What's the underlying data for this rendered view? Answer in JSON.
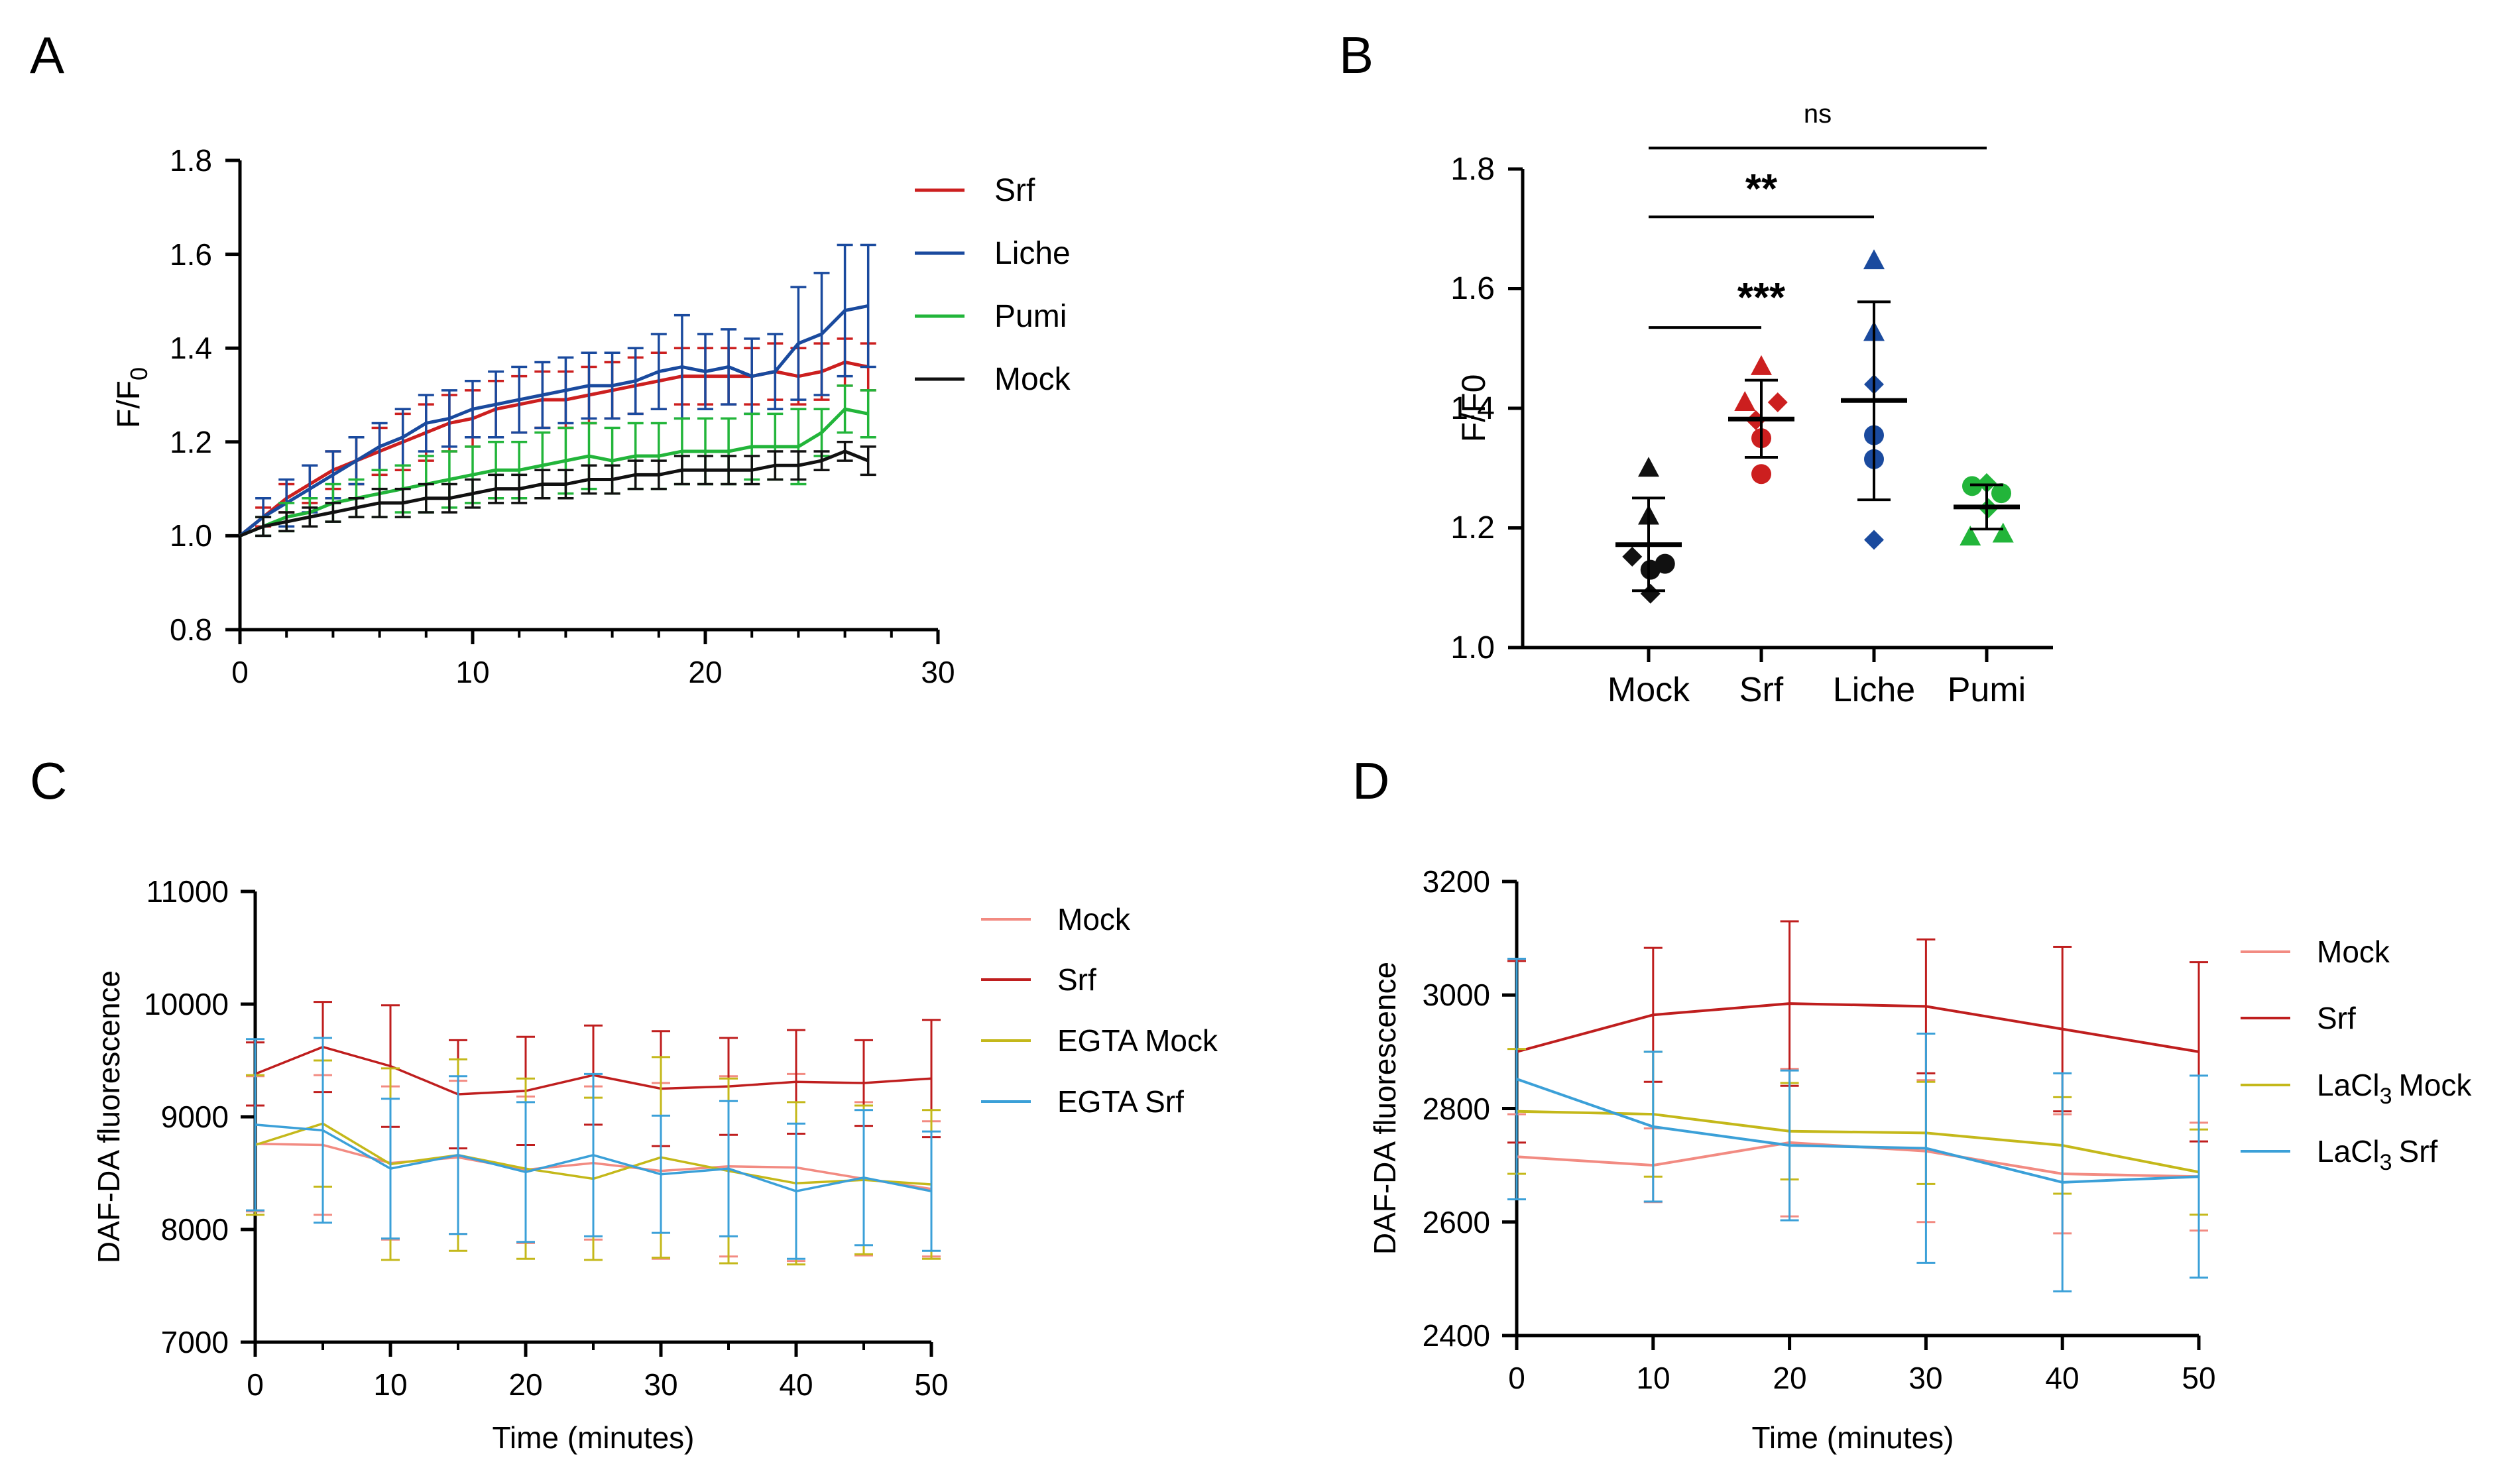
{
  "colors": {
    "axis": "#000000",
    "srf": "#cc1f1f",
    "liche": "#1a4a9e",
    "pumi": "#22b53a",
    "mock": "#111111",
    "mock_light": "#f28b82",
    "srf_dark": "#bf1e1e",
    "egta_mock": "#c4b81a",
    "egta_srf": "#3ba0d8",
    "ns_line": "#000000"
  },
  "chart_data": [
    {
      "panel": "A",
      "type": "line",
      "ylabel_main": "F/F",
      "ylabel_sub": "0",
      "xlabel": "",
      "xlim": [
        0,
        30
      ],
      "ylim": [
        0.8,
        1.8
      ],
      "xticks": [
        0,
        10,
        20,
        30
      ],
      "yticks": [
        0.8,
        1.0,
        1.2,
        1.4,
        1.6,
        1.8
      ],
      "ytick_labels": [
        "0.8",
        "1.0",
        "1.2",
        "1.4",
        "1.6",
        "1.8"
      ],
      "xtick_labels": [
        "0",
        "10",
        "20",
        "30"
      ],
      "x": [
        0,
        1,
        2,
        3,
        4,
        5,
        6,
        7,
        8,
        9,
        10,
        11,
        12,
        13,
        14,
        15,
        16,
        17,
        18,
        19,
        20,
        21,
        22,
        23,
        24,
        25,
        26,
        27
      ],
      "series": [
        {
          "name": "Srf",
          "color_key": "srf",
          "values": [
            1.0,
            1.04,
            1.08,
            1.11,
            1.14,
            1.16,
            1.18,
            1.2,
            1.22,
            1.24,
            1.25,
            1.27,
            1.28,
            1.29,
            1.29,
            1.3,
            1.31,
            1.32,
            1.33,
            1.34,
            1.34,
            1.34,
            1.34,
            1.35,
            1.34,
            1.35,
            1.37,
            1.36
          ],
          "err": [
            0.0,
            0.02,
            0.03,
            0.04,
            0.04,
            0.05,
            0.05,
            0.06,
            0.06,
            0.06,
            0.06,
            0.06,
            0.06,
            0.06,
            0.06,
            0.06,
            0.06,
            0.06,
            0.06,
            0.06,
            0.06,
            0.06,
            0.06,
            0.06,
            0.06,
            0.06,
            0.05,
            0.05
          ]
        },
        {
          "name": "Liche",
          "color_key": "liche",
          "values": [
            1.0,
            1.04,
            1.07,
            1.1,
            1.13,
            1.16,
            1.19,
            1.21,
            1.24,
            1.25,
            1.27,
            1.28,
            1.29,
            1.3,
            1.31,
            1.32,
            1.32,
            1.33,
            1.35,
            1.36,
            1.35,
            1.36,
            1.34,
            1.35,
            1.41,
            1.43,
            1.48,
            1.49
          ],
          "err": [
            0.0,
            0.04,
            0.05,
            0.05,
            0.05,
            0.05,
            0.05,
            0.06,
            0.06,
            0.06,
            0.06,
            0.07,
            0.07,
            0.07,
            0.07,
            0.07,
            0.07,
            0.07,
            0.08,
            0.11,
            0.08,
            0.08,
            0.08,
            0.08,
            0.12,
            0.13,
            0.14,
            0.13
          ]
        },
        {
          "name": "Pumi",
          "color_key": "pumi",
          "values": [
            1.0,
            1.02,
            1.04,
            1.05,
            1.07,
            1.08,
            1.09,
            1.1,
            1.11,
            1.12,
            1.13,
            1.14,
            1.14,
            1.15,
            1.16,
            1.17,
            1.16,
            1.17,
            1.17,
            1.18,
            1.18,
            1.18,
            1.19,
            1.19,
            1.19,
            1.22,
            1.27,
            1.26
          ],
          "err": [
            0.0,
            0.02,
            0.03,
            0.03,
            0.04,
            0.04,
            0.05,
            0.05,
            0.06,
            0.06,
            0.06,
            0.06,
            0.06,
            0.07,
            0.07,
            0.07,
            0.07,
            0.07,
            0.07,
            0.07,
            0.07,
            0.07,
            0.07,
            0.07,
            0.08,
            0.05,
            0.05,
            0.05
          ]
        },
        {
          "name": "Mock",
          "color_key": "mock",
          "values": [
            1.0,
            1.02,
            1.03,
            1.04,
            1.05,
            1.06,
            1.07,
            1.07,
            1.08,
            1.08,
            1.09,
            1.1,
            1.1,
            1.11,
            1.11,
            1.12,
            1.12,
            1.13,
            1.13,
            1.14,
            1.14,
            1.14,
            1.14,
            1.15,
            1.15,
            1.16,
            1.18,
            1.16
          ],
          "err": [
            0.0,
            0.02,
            0.02,
            0.02,
            0.02,
            0.02,
            0.03,
            0.03,
            0.03,
            0.03,
            0.03,
            0.03,
            0.03,
            0.03,
            0.03,
            0.03,
            0.03,
            0.03,
            0.03,
            0.03,
            0.03,
            0.03,
            0.03,
            0.03,
            0.03,
            0.02,
            0.02,
            0.03
          ]
        }
      ],
      "legend": [
        "Srf",
        "Liche",
        "Pumi",
        "Mock"
      ]
    },
    {
      "panel": "B",
      "type": "scatter",
      "ylabel": "F/F0",
      "ylim": [
        1.0,
        1.8
      ],
      "yticks": [
        1.0,
        1.2,
        1.4,
        1.6,
        1.8
      ],
      "ytick_labels": [
        "1.0",
        "1.2",
        "1.4",
        "1.6",
        "1.8"
      ],
      "categories": [
        "Mock",
        "Srf",
        "Liche",
        "Pumi"
      ],
      "groups": [
        {
          "name": "Mock",
          "color_key": "mock",
          "mean": 1.172,
          "sd_low": 1.095,
          "sd_high": 1.25,
          "points": [
            {
              "shape": "triangle",
              "value": 1.3,
              "dx": 0.0
            },
            {
              "shape": "triangle",
              "value": 1.22,
              "dx": 0.0
            },
            {
              "shape": "diamond",
              "value": 1.152,
              "dx": -0.45
            },
            {
              "shape": "circle",
              "value": 1.13,
              "dx": 0.05
            },
            {
              "shape": "circle",
              "value": 1.14,
              "dx": 0.45
            },
            {
              "shape": "diamond",
              "value": 1.09,
              "dx": 0.05
            }
          ]
        },
        {
          "name": "Srf",
          "color_key": "srf",
          "mean": 1.382,
          "sd_low": 1.318,
          "sd_high": 1.447,
          "points": [
            {
              "shape": "triangle",
              "value": 1.47,
              "dx": 0.0
            },
            {
              "shape": "triangle",
              "value": 1.41,
              "dx": -0.45
            },
            {
              "shape": "diamond",
              "value": 1.41,
              "dx": 0.45
            },
            {
              "shape": "diamond",
              "value": 1.38,
              "dx": -0.15
            },
            {
              "shape": "circle",
              "value": 1.35,
              "dx": 0.0
            },
            {
              "shape": "circle",
              "value": 1.29,
              "dx": 0.0
            }
          ]
        },
        {
          "name": "Liche",
          "color_key": "liche",
          "mean": 1.413,
          "sd_low": 1.247,
          "sd_high": 1.578,
          "points": [
            {
              "shape": "triangle",
              "value": 1.647,
              "dx": 0.0
            },
            {
              "shape": "triangle",
              "value": 1.527,
              "dx": 0.0
            },
            {
              "shape": "diamond",
              "value": 1.44,
              "dx": 0.0
            },
            {
              "shape": "circle",
              "value": 1.355,
              "dx": 0.0
            },
            {
              "shape": "circle",
              "value": 1.315,
              "dx": 0.0
            },
            {
              "shape": "diamond",
              "value": 1.18,
              "dx": 0.0
            }
          ]
        },
        {
          "name": "Pumi",
          "color_key": "pumi",
          "mean": 1.235,
          "sd_low": 1.198,
          "sd_high": 1.272,
          "points": [
            {
              "shape": "circle",
              "value": 1.27,
              "dx": -0.4
            },
            {
              "shape": "diamond",
              "value": 1.275,
              "dx": 0.0
            },
            {
              "shape": "circle",
              "value": 1.258,
              "dx": 0.4
            },
            {
              "shape": "diamond",
              "value": 1.233,
              "dx": 0.05
            },
            {
              "shape": "triangle",
              "value": 1.185,
              "dx": -0.45
            },
            {
              "shape": "triangle",
              "value": 1.19,
              "dx": 0.45
            }
          ]
        }
      ],
      "significance": [
        {
          "label": "***",
          "from": "Mock",
          "to": "Srf",
          "level": 1.535
        },
        {
          "label": "**",
          "from": "Mock",
          "to": "Liche",
          "level": 1.72
        },
        {
          "label": "ns",
          "from": "Mock",
          "to": "Pumi",
          "level": 1.835
        }
      ]
    },
    {
      "panel": "C",
      "type": "line",
      "ylabel": "DAF-DA fluorescence",
      "xlabel": "Time (minutes)",
      "xlim": [
        0,
        50
      ],
      "ylim": [
        7000,
        11000
      ],
      "xticks": [
        0,
        10,
        20,
        30,
        40,
        50
      ],
      "xtick_labels": [
        "0",
        "10",
        "20",
        "30",
        "40",
        "50"
      ],
      "yticks": [
        7000,
        8000,
        9000,
        10000,
        11000
      ],
      "ytick_labels": [
        "7000",
        "8000",
        "9000",
        "10000",
        "11000"
      ],
      "x": [
        0,
        5,
        10,
        15,
        20,
        25,
        30,
        35,
        40,
        45,
        50
      ],
      "series": [
        {
          "name": "Mock",
          "color_key": "mock_light",
          "values": [
            8760,
            8750,
            8590,
            8640,
            8530,
            8590,
            8520,
            8560,
            8550,
            8450,
            8360
          ],
          "err": [
            600,
            620,
            680,
            680,
            650,
            680,
            780,
            800,
            830,
            680,
            600
          ]
        },
        {
          "name": "Srf",
          "color_key": "srf_dark",
          "values": [
            9380,
            9620,
            9450,
            9200,
            9230,
            9370,
            9250,
            9270,
            9310,
            9300,
            9340
          ],
          "err": [
            280,
            400,
            540,
            480,
            480,
            440,
            510,
            430,
            460,
            380,
            520
          ]
        },
        {
          "name": "EGTA Mock",
          "color_key": "egta_mock",
          "values": [
            8750,
            8940,
            8580,
            8660,
            8540,
            8450,
            8640,
            8520,
            8410,
            8440,
            8400
          ],
          "err": [
            620,
            560,
            850,
            850,
            800,
            720,
            890,
            820,
            720,
            660,
            660
          ]
        },
        {
          "name": "EGTA Srf",
          "color_key": "egta_srf",
          "values": [
            8930,
            8880,
            8540,
            8660,
            8510,
            8660,
            8490,
            8540,
            8340,
            8460,
            8340
          ],
          "err": [
            760,
            820,
            620,
            700,
            620,
            720,
            520,
            600,
            600,
            600,
            530
          ]
        }
      ],
      "legend": [
        "Mock",
        "Srf",
        "EGTA Mock",
        "EGTA Srf"
      ]
    },
    {
      "panel": "D",
      "type": "line",
      "ylabel": "DAF-DA fluorescence",
      "xlabel": "Time (minutes)",
      "xlim": [
        0,
        50
      ],
      "ylim": [
        2400,
        3200
      ],
      "xticks": [
        0,
        10,
        20,
        30,
        40,
        50
      ],
      "xtick_labels": [
        "0",
        "10",
        "20",
        "30",
        "40",
        "50"
      ],
      "yticks": [
        2400,
        2600,
        2800,
        3000,
        3200
      ],
      "ytick_labels": [
        "2400",
        "2600",
        "2800",
        "3000",
        "3200"
      ],
      "x": [
        0,
        10,
        20,
        30,
        40,
        50
      ],
      "series": [
        {
          "name": "Mock",
          "color_key": "mock_light",
          "values": [
            2715,
            2700,
            2740,
            2725,
            2685,
            2680
          ],
          "err": [
            75,
            65,
            130,
            125,
            105,
            95
          ]
        },
        {
          "name": "Srf",
          "color_key": "srf_dark",
          "values": [
            2900,
            2965,
            2985,
            2980,
            2940,
            2900
          ],
          "err": [
            160,
            118,
            145,
            118,
            145,
            158
          ]
        },
        {
          "name": "LaCl3 Mock",
          "color_key": "egta_mock",
          "values": [
            2795,
            2790,
            2760,
            2757,
            2735,
            2688
          ],
          "err": [
            110,
            110,
            85,
            90,
            85,
            75
          ]
        },
        {
          "name": "LaCl3 Srf",
          "color_key": "egta_srf",
          "values": [
            2852,
            2768,
            2735,
            2730,
            2670,
            2680
          ],
          "err": [
            212,
            132,
            132,
            202,
            192,
            178
          ]
        }
      ],
      "legend_main": [
        "LaCl",
        "LaCl"
      ],
      "legend": [
        "Mock",
        "Srf",
        "Mock",
        "Srf"
      ]
    }
  ],
  "panel_labels": [
    "A",
    "B",
    "C",
    "D"
  ]
}
